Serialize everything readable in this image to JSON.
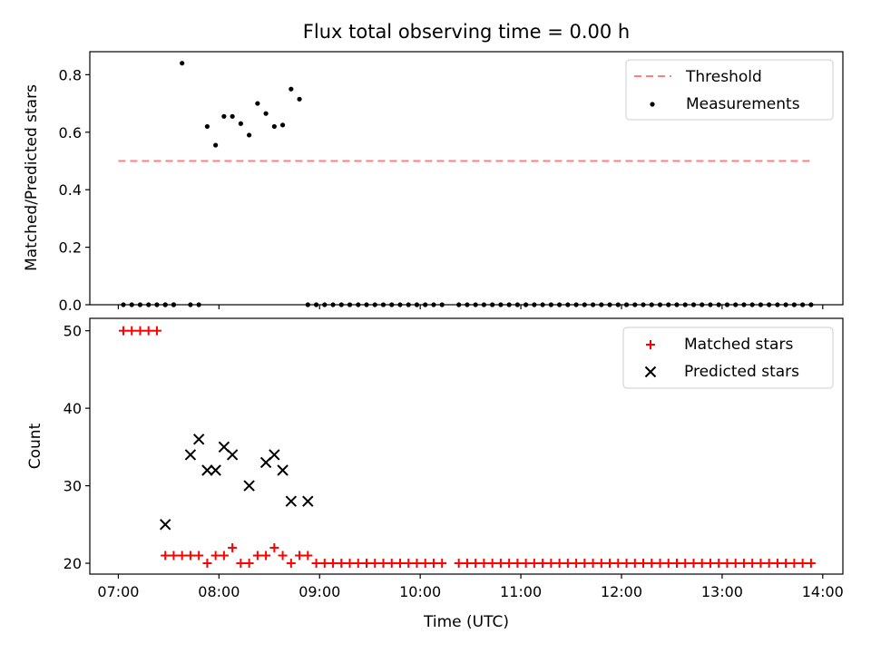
{
  "figure": {
    "title": "Flux total observing time = 0.00 h"
  },
  "chart_data": [
    {
      "type": "scatter",
      "ylabel": "Matched/Predicted stars",
      "xlabel": "",
      "xlim": [
        "06:43",
        "14:12"
      ],
      "ylim": [
        0,
        0.88
      ],
      "yticks": [
        0.0,
        0.2,
        0.4,
        0.6,
        0.8
      ],
      "ytick_labels": [
        "0.0",
        "0.2",
        "0.4",
        "0.6",
        "0.8"
      ],
      "legend_position": "top-right",
      "threshold": {
        "name": "Threshold",
        "value": 0.5,
        "x_range": [
          "07:00",
          "13:53"
        ],
        "color": "#ff7f7f",
        "style": "dashed"
      },
      "series": [
        {
          "name": "Measurements",
          "color": "#000000",
          "marker": "dot",
          "x": [
            "07:03",
            "07:08",
            "07:13",
            "07:18",
            "07:23",
            "07:28",
            "07:33",
            "07:28",
            "07:33",
            "07:38",
            "07:43",
            "07:48",
            "07:53",
            "07:58",
            "08:03",
            "08:08",
            "08:13",
            "08:18",
            "08:23",
            "08:28",
            "08:33",
            "08:38",
            "08:43",
            "08:48",
            "08:53",
            "08:58",
            "09:03",
            "09:08",
            "09:13",
            "09:18",
            "09:23",
            "09:28",
            "09:33",
            "09:38",
            "09:43",
            "09:48",
            "09:53",
            "09:58",
            "10:03",
            "10:08",
            "10:13",
            "10:23",
            "10:28",
            "10:33",
            "10:38",
            "10:43",
            "10:48",
            "10:53",
            "10:58",
            "11:03",
            "11:08",
            "11:13",
            "11:18",
            "11:23",
            "11:28",
            "11:33",
            "11:38",
            "11:43",
            "11:48",
            "11:53",
            "11:58",
            "12:03",
            "12:08",
            "12:13",
            "12:18",
            "12:23",
            "12:28",
            "12:33",
            "12:38",
            "12:43",
            "12:48",
            "12:53",
            "12:58",
            "13:03",
            "13:08",
            "13:13",
            "13:18",
            "13:23",
            "13:28",
            "13:33",
            "13:38",
            "13:43",
            "13:48",
            "13:53"
          ],
          "y": [
            0,
            0,
            0,
            0,
            0,
            0,
            0,
            0,
            0,
            0.84,
            0,
            0,
            0.62,
            0.555,
            0.655,
            0.655,
            0.63,
            0.59,
            0.7,
            0.665,
            0.62,
            0.625,
            0.75,
            0.715,
            0,
            0,
            0,
            0,
            0,
            0,
            0,
            0,
            0,
            0,
            0,
            0,
            0,
            0,
            0,
            0,
            0,
            0,
            0,
            0,
            0,
            0,
            0,
            0,
            0,
            0,
            0,
            0,
            0,
            0,
            0,
            0,
            0,
            0,
            0,
            0,
            0,
            0,
            0,
            0,
            0,
            0,
            0,
            0,
            0,
            0,
            0,
            0,
            0,
            0,
            0,
            0,
            0,
            0,
            0,
            0,
            0,
            0,
            0,
            0
          ]
        }
      ]
    },
    {
      "type": "scatter",
      "ylabel": "Count",
      "xlabel": "Time (UTC)",
      "xlim": [
        "06:43",
        "14:12"
      ],
      "ylim": [
        18.6,
        51.6
      ],
      "yticks": [
        20,
        30,
        40,
        50
      ],
      "ytick_labels": [
        "20",
        "30",
        "40",
        "50"
      ],
      "xticks": [
        "07:00",
        "08:00",
        "09:00",
        "10:00",
        "11:00",
        "12:00",
        "13:00",
        "14:00"
      ],
      "xtick_labels": [
        "07:00",
        "08:00",
        "09:00",
        "10:00",
        "11:00",
        "12:00",
        "13:00",
        "14:00"
      ],
      "legend_position": "top-right",
      "series": [
        {
          "name": "Matched stars",
          "color": "#ff0000",
          "marker": "plus",
          "x": [
            "07:03",
            "07:08",
            "07:13",
            "07:18",
            "07:23",
            "07:28",
            "07:33",
            "07:38",
            "07:43",
            "07:48",
            "07:53",
            "07:58",
            "08:03",
            "08:08",
            "08:13",
            "08:18",
            "08:23",
            "08:28",
            "08:33",
            "08:38",
            "08:43",
            "08:48",
            "08:53",
            "08:58",
            "09:03",
            "09:08",
            "09:13",
            "09:18",
            "09:23",
            "09:28",
            "09:33",
            "09:38",
            "09:43",
            "09:48",
            "09:53",
            "09:58",
            "10:03",
            "10:08",
            "10:13",
            "10:23",
            "10:28",
            "10:33",
            "10:38",
            "10:43",
            "10:48",
            "10:53",
            "10:58",
            "11:03",
            "11:08",
            "11:13",
            "11:18",
            "11:23",
            "11:28",
            "11:33",
            "11:38",
            "11:43",
            "11:48",
            "11:53",
            "11:58",
            "12:03",
            "12:08",
            "12:13",
            "12:18",
            "12:23",
            "12:28",
            "12:33",
            "12:38",
            "12:43",
            "12:48",
            "12:53",
            "12:58",
            "13:03",
            "13:08",
            "13:13",
            "13:18",
            "13:23",
            "13:28",
            "13:33",
            "13:38",
            "13:43",
            "13:48",
            "13:53"
          ],
          "y": [
            50,
            50,
            50,
            50,
            50,
            21,
            21,
            21,
            21,
            21,
            20,
            21,
            21,
            22,
            20,
            20,
            21,
            21,
            22,
            21,
            20,
            21,
            21,
            20,
            20,
            20,
            20,
            20,
            20,
            20,
            20,
            20,
            20,
            20,
            20,
            20,
            20,
            20,
            20,
            20,
            20,
            20,
            20,
            20,
            20,
            20,
            20,
            20,
            20,
            20,
            20,
            20,
            20,
            20,
            20,
            20,
            20,
            20,
            20,
            20,
            20,
            20,
            20,
            20,
            20,
            20,
            20,
            20,
            20,
            20,
            20,
            20,
            20,
            20,
            20,
            20,
            20,
            20,
            20,
            20,
            20,
            20
          ]
        },
        {
          "name": "Predicted stars",
          "color": "#000000",
          "marker": "x",
          "x": [
            "07:28",
            "07:43",
            "07:48",
            "07:53",
            "07:58",
            "08:03",
            "08:08",
            "08:18",
            "08:28",
            "08:33",
            "08:38",
            "08:43",
            "08:53"
          ],
          "y": [
            25,
            34,
            36,
            32,
            32,
            35,
            34,
            30,
            33,
            34,
            32,
            28,
            28
          ]
        }
      ]
    }
  ]
}
